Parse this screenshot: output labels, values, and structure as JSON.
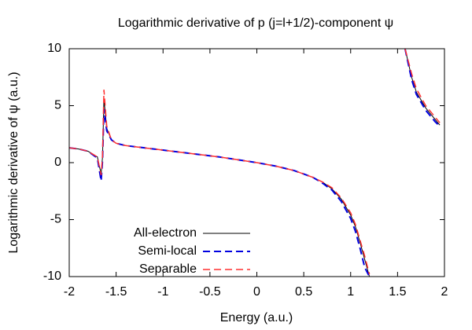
{
  "chart_data": {
    "type": "line",
    "title": "Logarithmic derivative of p (j=l+1/2)-component ψ",
    "x_label": "Energy (a.u.)",
    "y_label": "Logarithmic derivative of ψ (a.u.)",
    "x": [
      -2,
      -1.9,
      -1.8,
      -1.7,
      -1.66,
      -1.645,
      -1.63,
      -1.6,
      -1.55,
      -1.5,
      -1.4,
      -1.3,
      -1.2,
      -1.0,
      -0.8,
      -0.6,
      -0.4,
      -0.2,
      0,
      0.2,
      0.4,
      0.6,
      0.7,
      0.8,
      0.9,
      1.0,
      1.05,
      1.1,
      1.15,
      1.2,
      1.4,
      1.58,
      1.65,
      1.7,
      1.8,
      1.9,
      1.95
    ],
    "series": [
      {
        "name": "All-electron",
        "color": "#000000",
        "values": [
          1.3,
          1.2,
          1.0,
          0.5,
          -1.0,
          0.5,
          5.6,
          3.0,
          2.0,
          1.7,
          1.5,
          1.4,
          1.3,
          1.1,
          0.9,
          0.7,
          0.5,
          0.25,
          0,
          -0.3,
          -0.7,
          -1.3,
          -1.7,
          -2.3,
          -3.2,
          -4.6,
          -5.6,
          -7.0,
          -8.5,
          -10,
          null,
          10,
          7.5,
          6.2,
          4.8,
          3.8,
          3.3
        ]
      },
      {
        "name": "Semi-local",
        "color": "#0000e0",
        "values": [
          1.3,
          1.2,
          1.0,
          0.4,
          -1.6,
          0.2,
          4.7,
          2.8,
          2.0,
          1.7,
          1.5,
          1.4,
          1.3,
          1.1,
          0.9,
          0.7,
          0.5,
          0.25,
          0,
          -0.3,
          -0.7,
          -1.3,
          -1.8,
          -2.4,
          -3.4,
          -4.9,
          -6.0,
          -7.5,
          -9.2,
          -10,
          null,
          10,
          7.3,
          6.0,
          4.6,
          3.6,
          3.2
        ]
      },
      {
        "name": "Separable",
        "color": "#ff3030",
        "values": [
          1.3,
          1.2,
          1.0,
          0.5,
          -1.1,
          0.6,
          6.4,
          3.2,
          2.0,
          1.7,
          1.5,
          1.4,
          1.3,
          1.1,
          0.9,
          0.7,
          0.5,
          0.25,
          0,
          -0.3,
          -0.7,
          -1.3,
          -1.7,
          -2.2,
          -3.1,
          -4.4,
          -5.4,
          -6.8,
          -8.2,
          -9.8,
          null,
          10,
          7.8,
          6.5,
          5.0,
          4.0,
          3.5
        ]
      }
    ],
    "xlim": [
      -2,
      2
    ],
    "ylim": [
      -10,
      10
    ],
    "xticks": [
      -2,
      -1.5,
      -1,
      -0.5,
      0,
      0.5,
      1,
      1.5,
      2
    ],
    "yticks": [
      -10,
      -5,
      0,
      5,
      10
    ],
    "grid": false,
    "legend": "lower-left"
  }
}
